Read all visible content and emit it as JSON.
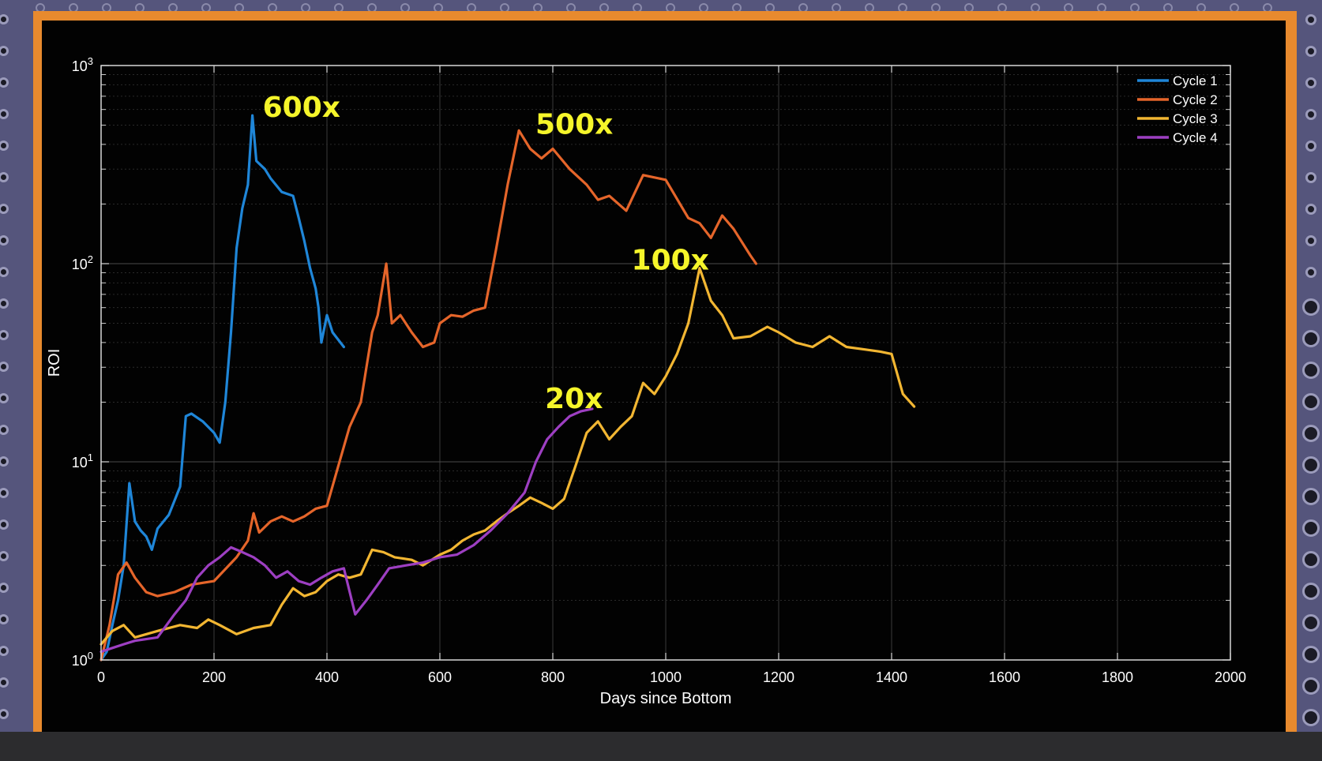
{
  "chart_data": {
    "type": "line",
    "xlabel": "Days since Bottom",
    "ylabel": "ROI",
    "xlim": [
      0,
      2000
    ],
    "ylim": [
      1,
      1000
    ],
    "yscale": "log",
    "grid": true,
    "legend_position": "top-right",
    "x_ticks": [
      "0",
      "200",
      "400",
      "600",
      "800",
      "1000",
      "1200",
      "1400",
      "1600",
      "1800",
      "2000"
    ],
    "y_ticks": [
      {
        "base": "10",
        "exp": "0"
      },
      {
        "base": "10",
        "exp": "1"
      },
      {
        "base": "10",
        "exp": "2"
      },
      {
        "base": "10",
        "exp": "3"
      }
    ],
    "annotations": [
      {
        "text": "600x",
        "x": 275,
        "y": 560
      },
      {
        "text": "500x",
        "x": 758,
        "y": 460
      },
      {
        "text": "100x",
        "x": 928,
        "y": 95
      },
      {
        "text": "20x",
        "x": 775,
        "y": 19
      }
    ],
    "series": [
      {
        "name": "Cycle 1",
        "color": "#1f86d8",
        "points": [
          [
            0,
            1.0
          ],
          [
            10,
            1.1
          ],
          [
            20,
            1.5
          ],
          [
            30,
            2.0
          ],
          [
            40,
            3.0
          ],
          [
            50,
            7.8
          ],
          [
            60,
            5.0
          ],
          [
            70,
            4.5
          ],
          [
            80,
            4.2
          ],
          [
            90,
            3.6
          ],
          [
            100,
            4.6
          ],
          [
            120,
            5.4
          ],
          [
            140,
            7.5
          ],
          [
            150,
            17
          ],
          [
            160,
            17.5
          ],
          [
            180,
            16
          ],
          [
            200,
            14
          ],
          [
            210,
            12.5
          ],
          [
            220,
            20
          ],
          [
            230,
            45
          ],
          [
            240,
            120
          ],
          [
            250,
            190
          ],
          [
            260,
            250
          ],
          [
            268,
            560
          ],
          [
            275,
            330
          ],
          [
            290,
            300
          ],
          [
            300,
            270
          ],
          [
            320,
            230
          ],
          [
            340,
            220
          ],
          [
            350,
            170
          ],
          [
            360,
            130
          ],
          [
            370,
            95
          ],
          [
            380,
            75
          ],
          [
            385,
            60
          ],
          [
            390,
            40
          ],
          [
            400,
            55
          ],
          [
            410,
            45
          ],
          [
            430,
            38
          ]
        ]
      },
      {
        "name": "Cycle 2",
        "color": "#e5652a",
        "points": [
          [
            0,
            1.0
          ],
          [
            15,
            1.5
          ],
          [
            30,
            2.7
          ],
          [
            45,
            3.1
          ],
          [
            60,
            2.6
          ],
          [
            80,
            2.2
          ],
          [
            100,
            2.1
          ],
          [
            130,
            2.2
          ],
          [
            160,
            2.4
          ],
          [
            200,
            2.5
          ],
          [
            240,
            3.3
          ],
          [
            260,
            4.0
          ],
          [
            270,
            5.5
          ],
          [
            280,
            4.4
          ],
          [
            300,
            5.0
          ],
          [
            320,
            5.3
          ],
          [
            340,
            5.0
          ],
          [
            360,
            5.3
          ],
          [
            380,
            5.8
          ],
          [
            400,
            6.0
          ],
          [
            420,
            9.5
          ],
          [
            440,
            15
          ],
          [
            460,
            20
          ],
          [
            470,
            30
          ],
          [
            480,
            45
          ],
          [
            490,
            55
          ],
          [
            505,
            100
          ],
          [
            515,
            50
          ],
          [
            530,
            55
          ],
          [
            550,
            45
          ],
          [
            570,
            38
          ],
          [
            590,
            40
          ],
          [
            600,
            50
          ],
          [
            620,
            55
          ],
          [
            640,
            54
          ],
          [
            660,
            58
          ],
          [
            680,
            60
          ],
          [
            700,
            120
          ],
          [
            720,
            250
          ],
          [
            740,
            470
          ],
          [
            760,
            380
          ],
          [
            780,
            340
          ],
          [
            800,
            380
          ],
          [
            830,
            300
          ],
          [
            860,
            250
          ],
          [
            880,
            210
          ],
          [
            900,
            220
          ],
          [
            930,
            185
          ],
          [
            960,
            280
          ],
          [
            1000,
            265
          ],
          [
            1040,
            170
          ],
          [
            1060,
            160
          ],
          [
            1080,
            135
          ],
          [
            1100,
            175
          ],
          [
            1120,
            150
          ],
          [
            1150,
            110
          ],
          [
            1160,
            100
          ]
        ]
      },
      {
        "name": "Cycle 3",
        "color": "#f2b632",
        "points": [
          [
            0,
            1.2
          ],
          [
            20,
            1.4
          ],
          [
            40,
            1.5
          ],
          [
            60,
            1.3
          ],
          [
            100,
            1.4
          ],
          [
            140,
            1.5
          ],
          [
            170,
            1.45
          ],
          [
            190,
            1.6
          ],
          [
            210,
            1.5
          ],
          [
            240,
            1.35
          ],
          [
            270,
            1.45
          ],
          [
            300,
            1.5
          ],
          [
            320,
            1.9
          ],
          [
            340,
            2.3
          ],
          [
            360,
            2.1
          ],
          [
            380,
            2.2
          ],
          [
            400,
            2.5
          ],
          [
            420,
            2.7
          ],
          [
            440,
            2.6
          ],
          [
            460,
            2.7
          ],
          [
            480,
            3.6
          ],
          [
            500,
            3.5
          ],
          [
            520,
            3.3
          ],
          [
            550,
            3.2
          ],
          [
            570,
            3.0
          ],
          [
            600,
            3.4
          ],
          [
            620,
            3.6
          ],
          [
            640,
            4.0
          ],
          [
            660,
            4.3
          ],
          [
            680,
            4.5
          ],
          [
            700,
            5.0
          ],
          [
            720,
            5.5
          ],
          [
            740,
            6.0
          ],
          [
            760,
            6.6
          ],
          [
            780,
            6.2
          ],
          [
            800,
            5.8
          ],
          [
            820,
            6.5
          ],
          [
            840,
            9.5
          ],
          [
            860,
            14
          ],
          [
            880,
            16
          ],
          [
            900,
            13
          ],
          [
            920,
            15
          ],
          [
            940,
            17
          ],
          [
            960,
            25
          ],
          [
            980,
            22
          ],
          [
            1000,
            27
          ],
          [
            1020,
            35
          ],
          [
            1040,
            50
          ],
          [
            1060,
            95
          ],
          [
            1080,
            65
          ],
          [
            1100,
            55
          ],
          [
            1120,
            42
          ],
          [
            1150,
            43
          ],
          [
            1180,
            48
          ],
          [
            1200,
            45
          ],
          [
            1230,
            40
          ],
          [
            1260,
            38
          ],
          [
            1290,
            43
          ],
          [
            1320,
            38
          ],
          [
            1350,
            37
          ],
          [
            1380,
            36
          ],
          [
            1400,
            35
          ],
          [
            1420,
            22
          ],
          [
            1440,
            19
          ]
        ]
      },
      {
        "name": "Cycle 4",
        "color": "#9d3fc2",
        "points": [
          [
            0,
            1.1
          ],
          [
            20,
            1.15
          ],
          [
            40,
            1.2
          ],
          [
            60,
            1.25
          ],
          [
            100,
            1.3
          ],
          [
            130,
            1.7
          ],
          [
            150,
            2.0
          ],
          [
            170,
            2.6
          ],
          [
            190,
            3.0
          ],
          [
            210,
            3.3
          ],
          [
            230,
            3.7
          ],
          [
            250,
            3.5
          ],
          [
            270,
            3.3
          ],
          [
            290,
            3.0
          ],
          [
            310,
            2.6
          ],
          [
            330,
            2.8
          ],
          [
            350,
            2.5
          ],
          [
            370,
            2.4
          ],
          [
            390,
            2.6
          ],
          [
            410,
            2.8
          ],
          [
            430,
            2.9
          ],
          [
            450,
            1.7
          ],
          [
            470,
            2.0
          ],
          [
            490,
            2.4
          ],
          [
            510,
            2.9
          ],
          [
            540,
            3.0
          ],
          [
            570,
            3.1
          ],
          [
            600,
            3.3
          ],
          [
            630,
            3.4
          ],
          [
            660,
            3.8
          ],
          [
            690,
            4.5
          ],
          [
            720,
            5.5
          ],
          [
            750,
            7.0
          ],
          [
            770,
            10
          ],
          [
            790,
            13
          ],
          [
            810,
            15
          ],
          [
            830,
            17
          ],
          [
            850,
            18
          ],
          [
            870,
            18.5
          ]
        ]
      }
    ]
  }
}
